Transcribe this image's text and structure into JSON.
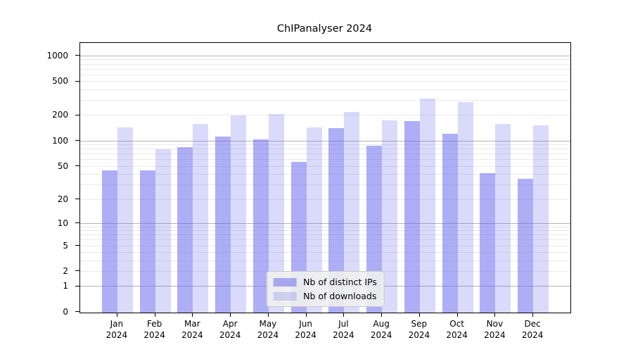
{
  "chart_data": {
    "type": "bar",
    "title": "ChIPanalyser 2024",
    "categories": [
      "Jan 2024",
      "Feb 2024",
      "Mar 2024",
      "Apr 2024",
      "May 2024",
      "Jun 2024",
      "Jul 2024",
      "Aug 2024",
      "Sep 2024",
      "Oct 2024",
      "Nov 2024",
      "Dec 2024"
    ],
    "series": [
      {
        "name": "Nb of distinct IPs",
        "values": [
          45,
          45,
          85,
          113,
          106,
          57,
          142,
          89,
          172,
          124,
          42,
          36
        ]
      },
      {
        "name": "Nb of downloads",
        "values": [
          145,
          80,
          160,
          200,
          210,
          145,
          220,
          178,
          320,
          288,
          160,
          155
        ]
      }
    ],
    "xlabel": "",
    "ylabel": "",
    "yscale": "log1p",
    "ylim": [
      0,
      1430
    ],
    "y_tick_values": [
      0,
      1,
      2,
      5,
      10,
      20,
      50,
      100,
      200,
      500,
      1000
    ],
    "y_major_gridlines": [
      1,
      10,
      100,
      1000
    ],
    "y_minor_gridlines": [
      2,
      3,
      4,
      5,
      6,
      7,
      8,
      9,
      20,
      30,
      40,
      50,
      60,
      70,
      80,
      90,
      200,
      300,
      400,
      500,
      600,
      700,
      800,
      900
    ],
    "grid": "on",
    "legend_position": "lower center"
  },
  "colors": {
    "bar_distinct_ips": "rgba(102,102,238,0.53)",
    "bar_downloads": "rgba(102,102,238,0.24)",
    "major_grid": "#b4b4b4",
    "minor_grid": "#e9e9e9",
    "axis": "#000000",
    "legend_bg": "rgba(240,240,240,0.9)",
    "legend_border": "#c9c9c9",
    "text": "#000000"
  }
}
